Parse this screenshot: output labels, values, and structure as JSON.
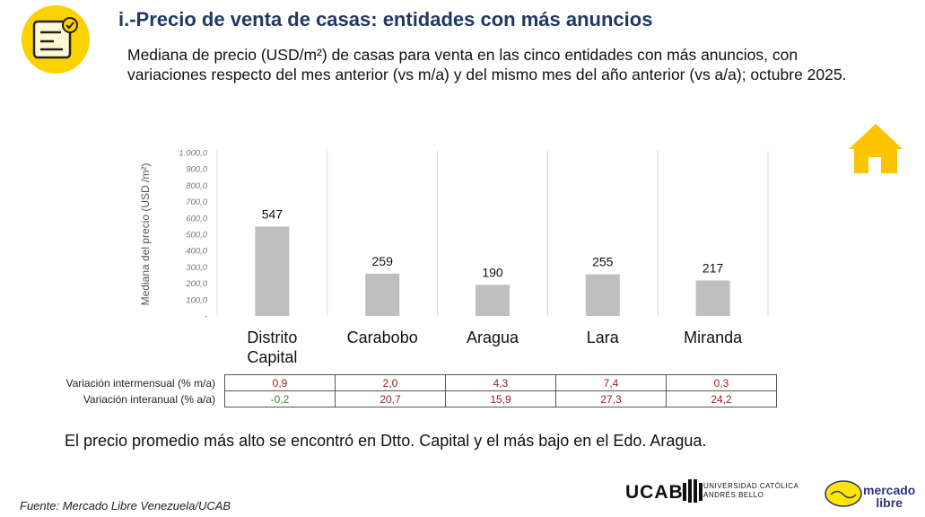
{
  "header": {
    "title": "i.-Precio de venta de casas: entidades con más anuncios",
    "subtitle": "Mediana de precio (USD/m²) de casas para venta en las cinco entidades con más anuncios, con variaciones respecto del mes anterior (vs m/a) y del mismo mes del año anterior (vs a/a); octubre 2025."
  },
  "chart_data": {
    "type": "bar",
    "ylabel": "Mediana del precio (USD /m²)",
    "categories": [
      "Distrito Capital",
      "Carabobo",
      "Aragua",
      "Lara",
      "Miranda"
    ],
    "values": [
      547,
      259,
      190,
      255,
      217
    ],
    "color": "#bfbfbf",
    "ylim": [
      0,
      1000
    ],
    "yticks": [
      {
        "value": 0,
        "label": "-"
      },
      {
        "value": 100,
        "label": "100,0"
      },
      {
        "value": 200,
        "label": "200,0"
      },
      {
        "value": 300,
        "label": "300,0"
      },
      {
        "value": 400,
        "label": "400,0"
      },
      {
        "value": 500,
        "label": "500,0"
      },
      {
        "value": 600,
        "label": "600,0"
      },
      {
        "value": 700,
        "label": "700,0"
      },
      {
        "value": 800,
        "label": "800,0"
      },
      {
        "value": 900,
        "label": "900,0"
      },
      {
        "value": 1000,
        "label": "1.000,0"
      }
    ]
  },
  "table": {
    "up_color": "#9b1c1c",
    "down_color": "#3c8a2e",
    "rows": [
      [
        "Variación intermensual (% m/a)",
        "0,9",
        "2,0",
        "4,3",
        "7,4",
        "0,3"
      ],
      [
        "Variación interanual (% a/a)",
        "-0,2",
        "20,7",
        "15,9",
        "27,3",
        "24,2"
      ]
    ]
  },
  "note": "El precio promedio más alto se encontró en Dtto. Capital y el más bajo en el Edo. Aragua.",
  "source": "Fuente: Mercado Libre Venezuela/UCAB",
  "logos": {
    "ucab": "UCAB",
    "ucab_line1": "UNIVERSIDAD CATÓLICA",
    "ucab_line2": "ANDRÉS BELLO",
    "ml_line1": "mercado",
    "ml_line2": "libre"
  }
}
